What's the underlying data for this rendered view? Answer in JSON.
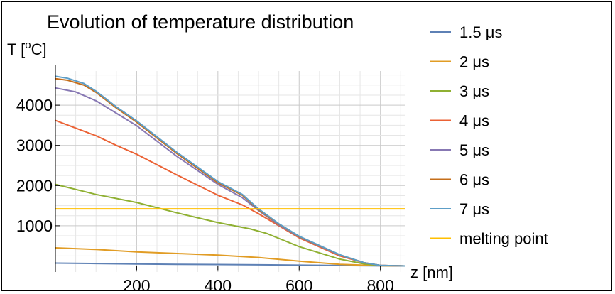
{
  "chart_data": {
    "type": "line",
    "title": "Evolution of temperature distribution",
    "ylabel": {
      "base": "T [",
      "sup": "o",
      "rest": "C]"
    },
    "xlabel": "z [nm]",
    "xlim": [
      0,
      860
    ],
    "ylim": [
      -150,
      4850
    ],
    "x_ticks": [
      200,
      400,
      600,
      800
    ],
    "y_ticks": [
      1000,
      2000,
      3000,
      4000
    ],
    "grid": true,
    "legend_position": "right",
    "series": [
      {
        "name": "1.5 μs",
        "color": "#5e81b5",
        "points": [
          [
            0,
            70
          ],
          [
            100,
            60
          ],
          [
            200,
            50
          ],
          [
            300,
            40
          ],
          [
            400,
            35
          ],
          [
            500,
            28
          ],
          [
            600,
            20
          ],
          [
            700,
            10
          ],
          [
            800,
            2
          ],
          [
            860,
            0
          ]
        ]
      },
      {
        "name": "2 μs",
        "color": "#e19c24",
        "points": [
          [
            0,
            450
          ],
          [
            100,
            410
          ],
          [
            200,
            350
          ],
          [
            300,
            310
          ],
          [
            400,
            270
          ],
          [
            500,
            210
          ],
          [
            600,
            120
          ],
          [
            700,
            40
          ],
          [
            800,
            5
          ],
          [
            860,
            0
          ]
        ]
      },
      {
        "name": "3 μs",
        "color": "#8fb032",
        "points": [
          [
            0,
            2030
          ],
          [
            100,
            1780
          ],
          [
            200,
            1580
          ],
          [
            300,
            1320
          ],
          [
            400,
            1080
          ],
          [
            480,
            920
          ],
          [
            520,
            810
          ],
          [
            600,
            480
          ],
          [
            700,
            170
          ],
          [
            760,
            50
          ],
          [
            800,
            10
          ],
          [
            860,
            0
          ]
        ]
      },
      {
        "name": "4 μs",
        "color": "#eb6235",
        "points": [
          [
            0,
            3620
          ],
          [
            100,
            3240
          ],
          [
            150,
            3000
          ],
          [
            200,
            2780
          ],
          [
            300,
            2260
          ],
          [
            400,
            1760
          ],
          [
            460,
            1520
          ],
          [
            500,
            1300
          ],
          [
            550,
            1000
          ],
          [
            600,
            700
          ],
          [
            700,
            250
          ],
          [
            760,
            80
          ],
          [
            800,
            15
          ],
          [
            860,
            0
          ]
        ]
      },
      {
        "name": "5 μs",
        "color": "#8778b3",
        "points": [
          [
            0,
            4430
          ],
          [
            50,
            4330
          ],
          [
            100,
            4110
          ],
          [
            150,
            3800
          ],
          [
            200,
            3490
          ],
          [
            300,
            2720
          ],
          [
            400,
            2030
          ],
          [
            460,
            1700
          ],
          [
            500,
            1380
          ],
          [
            550,
            1020
          ],
          [
            600,
            720
          ],
          [
            700,
            270
          ],
          [
            760,
            80
          ],
          [
            800,
            15
          ],
          [
            860,
            0
          ]
        ]
      },
      {
        "name": "6 μs",
        "color": "#c56e1a",
        "points": [
          [
            0,
            4660
          ],
          [
            30,
            4620
          ],
          [
            70,
            4500
          ],
          [
            100,
            4320
          ],
          [
            150,
            3930
          ],
          [
            200,
            3580
          ],
          [
            300,
            2790
          ],
          [
            400,
            2070
          ],
          [
            460,
            1760
          ],
          [
            500,
            1400
          ],
          [
            550,
            1040
          ],
          [
            600,
            730
          ],
          [
            700,
            275
          ],
          [
            760,
            80
          ],
          [
            800,
            15
          ],
          [
            860,
            0
          ]
        ]
      },
      {
        "name": "7 μs",
        "color": "#5d9ec7",
        "points": [
          [
            0,
            4720
          ],
          [
            30,
            4670
          ],
          [
            70,
            4540
          ],
          [
            100,
            4350
          ],
          [
            150,
            3960
          ],
          [
            200,
            3610
          ],
          [
            300,
            2820
          ],
          [
            400,
            2100
          ],
          [
            460,
            1780
          ],
          [
            500,
            1420
          ],
          [
            550,
            1050
          ],
          [
            600,
            740
          ],
          [
            700,
            280
          ],
          [
            760,
            80
          ],
          [
            800,
            15
          ],
          [
            860,
            0
          ]
        ]
      },
      {
        "name": "melting point",
        "color": "#ffbf00",
        "points": [
          [
            0,
            1420
          ],
          [
            860,
            1420
          ]
        ]
      }
    ]
  }
}
